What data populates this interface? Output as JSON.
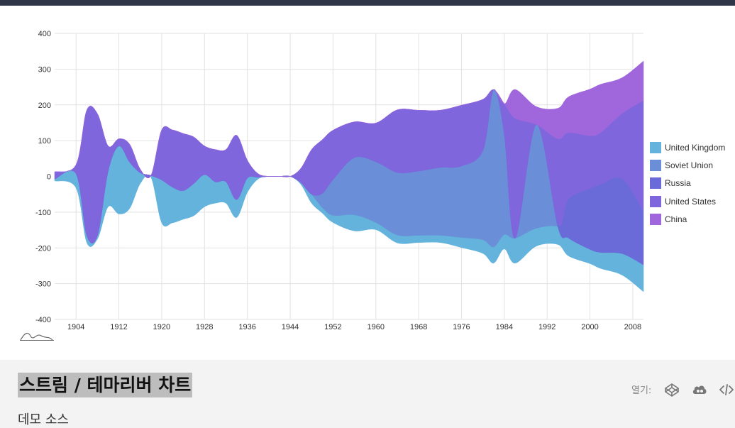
{
  "page": {
    "title": "스트림 / 테마리버 차트",
    "subtitle": "데모 소스",
    "open_label": "열기:",
    "icons": [
      "codepen-icon",
      "jsfiddle-icon",
      "code-icon"
    ]
  },
  "chart_data": {
    "type": "area",
    "subtype": "streamgraph",
    "x": [
      1900,
      1904,
      1906,
      1908,
      1910,
      1912,
      1914,
      1916,
      1918,
      1920,
      1922,
      1924,
      1926,
      1928,
      1930,
      1932,
      1934,
      1936,
      1938,
      1940,
      1942,
      1944,
      1946,
      1948,
      1950,
      1952,
      1956,
      1960,
      1964,
      1968,
      1972,
      1976,
      1980,
      1982,
      1984,
      1986,
      1990,
      1994,
      1996,
      2000,
      2002,
      2006,
      2010
    ],
    "x_ticks": [
      "1904",
      "1912",
      "1920",
      "1928",
      "1936",
      "1944",
      "1952",
      "1960",
      "1968",
      "1976",
      "1984",
      "1992",
      "2000",
      "2008"
    ],
    "ylim": [
      -400,
      400
    ],
    "y_ticks": [
      "400",
      "300",
      "200",
      "100",
      "0",
      "-100",
      "-200",
      "-300",
      "-400"
    ],
    "grid": true,
    "legend_position": "right",
    "series": [
      {
        "name": "United Kingdom",
        "color": "#63b3dc",
        "values": [
          5,
          40,
          20,
          10,
          100,
          190,
          130,
          30,
          5,
          120,
          100,
          80,
          90,
          90,
          60,
          60,
          50,
          40,
          5,
          0,
          0,
          0,
          5,
          25,
          15,
          20,
          45,
          20,
          22,
          20,
          20,
          28,
          38,
          45,
          40,
          70,
          50,
          50,
          50,
          40,
          45,
          60,
          75
        ]
      },
      {
        "name": "Soviet Union",
        "color": "#6a8fd8",
        "values": [
          0,
          0,
          0,
          0,
          0,
          0,
          0,
          0,
          0,
          0,
          0,
          0,
          0,
          0,
          0,
          0,
          0,
          0,
          0,
          0,
          0,
          0,
          0,
          0,
          40,
          100,
          160,
          170,
          175,
          180,
          190,
          200,
          250,
          440,
          280,
          0,
          290,
          0,
          0,
          0,
          0,
          0,
          0
        ]
      },
      {
        "name": "Russia",
        "color": "#6a6ad8",
        "values": [
          0,
          0,
          0,
          0,
          0,
          0,
          0,
          0,
          0,
          0,
          0,
          0,
          0,
          0,
          0,
          0,
          0,
          0,
          0,
          0,
          0,
          0,
          0,
          0,
          0,
          0,
          0,
          0,
          0,
          0,
          0,
          0,
          0,
          0,
          0,
          0,
          0,
          10,
          110,
          170,
          190,
          210,
          150
        ]
      },
      {
        "name": "United States",
        "color": "#7f66dd",
        "values": [
          20,
          25,
          350,
          340,
          70,
          20,
          50,
          10,
          0,
          140,
          160,
          160,
          130,
          80,
          90,
          90,
          180,
          50,
          10,
          0,
          0,
          0,
          40,
          125,
          150,
          138,
          100,
          108,
          175,
          170,
          160,
          170,
          143,
          0,
          86,
          336,
          0,
          236,
          185,
          148,
          145,
          182,
          310
        ]
      },
      {
        "name": "China",
        "color": "#a066dc",
        "values": [
          0,
          0,
          0,
          0,
          0,
          0,
          0,
          0,
          0,
          0,
          0,
          0,
          0,
          0,
          0,
          0,
          0,
          0,
          0,
          0,
          0,
          0,
          0,
          0,
          0,
          0,
          0,
          0,
          0,
          0,
          0,
          0,
          0,
          0,
          0,
          80,
          50,
          85,
          100,
          130,
          135,
          100,
          110
        ]
      }
    ]
  }
}
